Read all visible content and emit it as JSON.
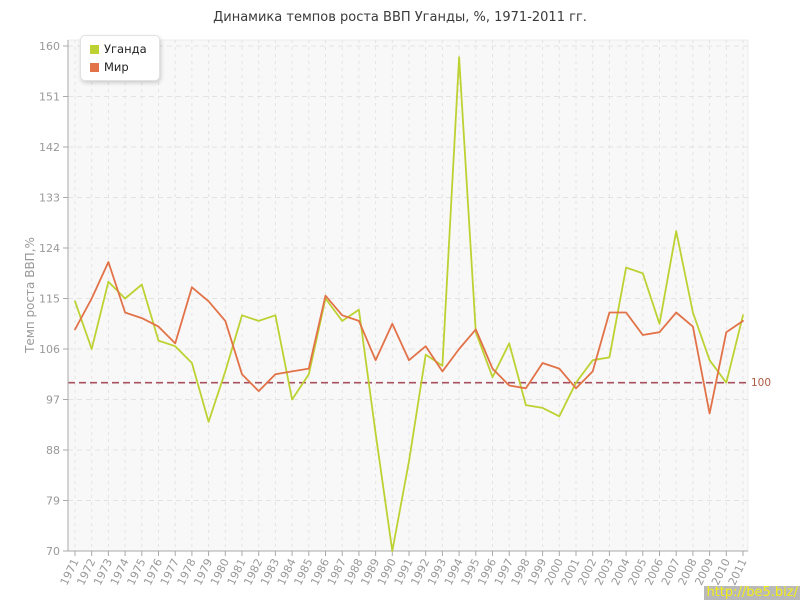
{
  "title": "Динамика темпов роста ВВП Уганды, %, 1971-2011 гг.",
  "y_axis_title": "Темп роста ВВП,%",
  "reference_line": {
    "value": 100,
    "label": "100",
    "color": "#a9505f",
    "label_color": "#ad5a44"
  },
  "watermark": {
    "text": "http://be5.biz/",
    "background": "#b9b9b9",
    "text_color": "#f4ee16"
  },
  "colors": {
    "plot_background": "#f8f8f8",
    "grid": "#e3e3e3",
    "axis": "#a9a9a9",
    "tick_label": "#999999",
    "title_text": "#3a3a3a"
  },
  "chart_data": {
    "type": "line",
    "title": "Динамика темпов роста ВВП Уганды, %, 1971-2011 гг.",
    "xlabel": "",
    "ylabel": "Темп роста ВВП,%",
    "ylim": [
      70,
      160
    ],
    "yticks": [
      70,
      79,
      88,
      97,
      106,
      115,
      124,
      133,
      142,
      151,
      160
    ],
    "grid": true,
    "legend_position": "top-left",
    "reference_line_y": 100,
    "x": [
      1971,
      1972,
      1973,
      1974,
      1975,
      1976,
      1977,
      1978,
      1979,
      1980,
      1981,
      1982,
      1983,
      1984,
      1985,
      1986,
      1987,
      1988,
      1989,
      1990,
      1991,
      1992,
      1993,
      1994,
      1995,
      1996,
      1997,
      1998,
      1999,
      2000,
      2001,
      2002,
      2003,
      2004,
      2005,
      2006,
      2007,
      2008,
      2009,
      2010,
      2011
    ],
    "series": [
      {
        "name": "Уганда",
        "color": "#bdd232",
        "values": [
          114.5,
          106,
          118,
          115,
          117.5,
          107.5,
          106.5,
          103.5,
          93,
          102,
          112,
          111,
          112,
          97,
          101.5,
          115,
          111,
          113,
          91,
          70,
          86,
          105,
          103,
          158,
          109,
          101,
          107,
          96,
          95.5,
          94,
          100,
          104,
          104.5,
          120.5,
          119.5,
          110.5,
          127,
          112.5,
          104,
          100,
          112
        ]
      },
      {
        "name": "Мир",
        "color": "#e27248",
        "values": [
          109.5,
          115,
          121.5,
          112.5,
          111.5,
          110,
          107,
          117,
          114.5,
          111,
          101.5,
          98.5,
          101.5,
          102,
          102.5,
          115.5,
          112,
          111,
          104,
          110.5,
          104,
          106.5,
          102,
          106,
          109.5,
          102.5,
          99.5,
          99,
          103.5,
          102.5,
          99,
          102,
          112.5,
          112.5,
          108.5,
          109,
          112.5,
          110,
          94.5,
          109,
          111
        ]
      }
    ]
  }
}
